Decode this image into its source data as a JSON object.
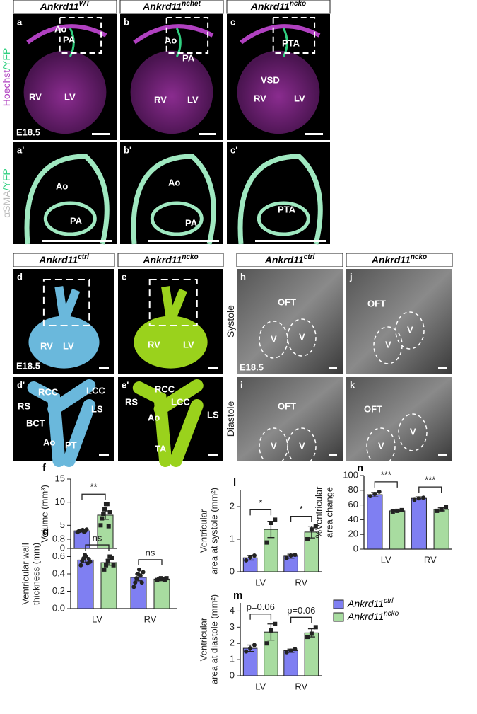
{
  "top_headers": [
    {
      "name": "Ankrd11",
      "sup": "WT"
    },
    {
      "name": "Ankrd11",
      "sup": "nchet"
    },
    {
      "name": "Ankrd11",
      "sup": "ncko"
    }
  ],
  "mid_headers": [
    {
      "name": "Ankrd11",
      "sup": "ctrl"
    },
    {
      "name": "Ankrd11",
      "sup": "ncko"
    },
    {
      "name": "Ankrd11",
      "sup": "ctrl"
    },
    {
      "name": "Ankrd11",
      "sup": "ncko"
    }
  ],
  "side_labels": [
    {
      "parts": [
        "Hoechst",
        "/YFP"
      ],
      "colors": [
        "#b040c0",
        "#30d080"
      ]
    },
    {
      "parts": [
        "αSMA",
        "/YFP"
      ],
      "colors": [
        "#bbbbbb",
        "#30d080"
      ]
    },
    {
      "parts": [
        "Systole"
      ],
      "colors": [
        "#222222"
      ]
    },
    {
      "parts": [
        "Diastole"
      ],
      "colors": [
        "#222222"
      ]
    }
  ],
  "image_panels": [
    {
      "style": "fluor",
      "labels": [
        "a",
        "Ao",
        "PA",
        "RV",
        "LV",
        "E18.5"
      ]
    },
    {
      "style": "fluor",
      "labels": [
        "b",
        "Ao",
        "PA",
        "RV",
        "LV"
      ]
    },
    {
      "style": "fluor",
      "labels": [
        "c",
        "PTA",
        "VSD",
        "RV",
        "LV"
      ]
    },
    {
      "style": "fluor2",
      "labels": [
        "a'",
        "Ao",
        "PA"
      ]
    },
    {
      "style": "fluor2",
      "labels": [
        "b'",
        "Ao",
        "PA"
      ]
    },
    {
      "style": "fluor2",
      "labels": [
        "c'",
        "PTA"
      ]
    },
    {
      "style": "blue",
      "labels": [
        "d",
        "RV",
        "LV",
        "E18.5"
      ]
    },
    {
      "style": "green",
      "labels": [
        "e",
        "RV",
        "LV"
      ]
    },
    {
      "style": "blue",
      "labels": [
        "d'",
        "RCC",
        "LCC",
        "RS",
        "LS",
        "BCT",
        "Ao",
        "PT"
      ]
    },
    {
      "style": "green",
      "labels": [
        "e'",
        "RCC",
        "LCC",
        "RS",
        "LS",
        "Ao",
        "TA"
      ]
    },
    {
      "style": "us",
      "labels": [
        "h",
        "OFT",
        "V",
        "V",
        "E18.5"
      ]
    },
    {
      "style": "us",
      "labels": [
        "j",
        "OFT",
        "V",
        "V"
      ]
    },
    {
      "style": "us",
      "labels": [
        "i",
        "OFT",
        "V",
        "V"
      ]
    },
    {
      "style": "us",
      "labels": [
        "k",
        "OFT",
        "V",
        "V"
      ]
    }
  ],
  "legend": [
    {
      "name": "Ankrd11",
      "sup": "ctrl",
      "color": "#7f7ff2"
    },
    {
      "name": "Ankrd11",
      "sup": "ncko",
      "color": "#a8dca0"
    }
  ],
  "chart_data": [
    {
      "type": "bar",
      "letter": "f",
      "ylabel": [
        "Volume (mm³)"
      ],
      "ylim": [
        0,
        15
      ],
      "yticks": [
        0,
        5,
        10,
        15
      ],
      "categories": [
        null
      ],
      "series": [
        {
          "values": [
            3.8
          ],
          "errors": [
            0.2
          ],
          "points": [
            [
              3.5,
              3.7,
              3.8,
              3.9,
              4.0,
              3.6,
              3.8,
              4.1
            ]
          ]
        },
        {
          "values": [
            7.2
          ],
          "errors": [
            0.9
          ],
          "points": [
            [
              5.0,
              6.5,
              7.5,
              8.5,
              9.6,
              9.6,
              4.8,
              7.8
            ]
          ]
        }
      ],
      "significance": [
        "**"
      ]
    },
    {
      "type": "bar",
      "letter": "g",
      "ylabel": [
        "Ventricular wall",
        "thickness (mm)"
      ],
      "ylim": [
        0,
        0.8
      ],
      "yticks": [
        {
          "value": 0,
          "label": "0.0"
        },
        0.2,
        0.4,
        0.6,
        0.8
      ],
      "categories": [
        "LV",
        "RV"
      ],
      "series": [
        {
          "values": [
            0.56,
            0.36
          ],
          "errors": [
            0.03,
            0.04
          ],
          "points": [
            [
              0.5,
              0.55,
              0.58,
              0.62,
              0.6,
              0.52,
              0.57,
              0.54
            ],
            [
              0.25,
              0.3,
              0.35,
              0.4,
              0.45,
              0.38,
              0.3,
              0.42
            ]
          ]
        },
        {
          "values": [
            0.53,
            0.34
          ],
          "errors": [
            0.03,
            0.01
          ],
          "points": [
            [
              0.45,
              0.5,
              0.55,
              0.6,
              0.58,
              0.5
            ],
            [
              0.33,
              0.34,
              0.35,
              0.34,
              0.33,
              0.35
            ]
          ]
        }
      ],
      "significance": [
        "ns",
        "ns"
      ]
    },
    {
      "type": "bar",
      "letter": "l",
      "ylabel": [
        "Ventricular",
        "area at systole (mm²)"
      ],
      "ylim": [
        0,
        2.5
      ],
      "yticks": [
        0,
        1,
        2
      ],
      "categories": [
        "LV",
        "RV"
      ],
      "series": [
        {
          "values": [
            0.43,
            0.48
          ],
          "errors": [
            0.07,
            0.06
          ],
          "points": [
            [
              0.35,
              0.45,
              0.5
            ],
            [
              0.42,
              0.5,
              0.52
            ]
          ]
        },
        {
          "values": [
            1.3,
            1.22
          ],
          "errors": [
            0.25,
            0.18
          ],
          "points": [
            [
              0.9,
              1.5,
              1.6
            ],
            [
              1.0,
              1.3,
              1.4
            ]
          ]
        }
      ],
      "significance": [
        "*",
        "*"
      ]
    },
    {
      "type": "bar",
      "letter": "n",
      "ylabel": [
        "%Ventricular",
        "area change"
      ],
      "ylim": [
        0,
        100
      ],
      "yticks": [
        0,
        20,
        40,
        60,
        80,
        100
      ],
      "categories": [
        "LV",
        "RV"
      ],
      "series": [
        {
          "values": [
            74,
            69
          ],
          "errors": [
            3,
            2
          ],
          "points": [
            [
              72,
              75,
              78
            ],
            [
              67,
              69,
              70
            ]
          ]
        },
        {
          "values": [
            52,
            54
          ],
          "errors": [
            1,
            2
          ],
          "points": [
            [
              51,
              52,
              53
            ],
            [
              52,
              54,
              57
            ]
          ]
        }
      ],
      "significance": [
        "***",
        "***"
      ]
    },
    {
      "type": "bar",
      "letter": "m",
      "ylabel": [
        "Ventricular",
        "area at diastole (mm²)"
      ],
      "ylim": [
        0,
        4.5
      ],
      "yticks": [
        0,
        1,
        2,
        3,
        4
      ],
      "categories": [
        "LV",
        "RV"
      ],
      "series": [
        {
          "values": [
            1.7,
            1.55
          ],
          "errors": [
            0.2,
            0.1
          ],
          "points": [
            [
              1.5,
              1.7,
              1.9
            ],
            [
              1.45,
              1.55,
              1.65
            ]
          ]
        },
        {
          "values": [
            2.7,
            2.65
          ],
          "errors": [
            0.5,
            0.25
          ],
          "points": [
            [
              2.0,
              2.8,
              3.2
            ],
            [
              2.4,
              2.6,
              3.0
            ]
          ]
        }
      ],
      "significance": [
        "p=0.06",
        "p=0.06"
      ]
    }
  ]
}
